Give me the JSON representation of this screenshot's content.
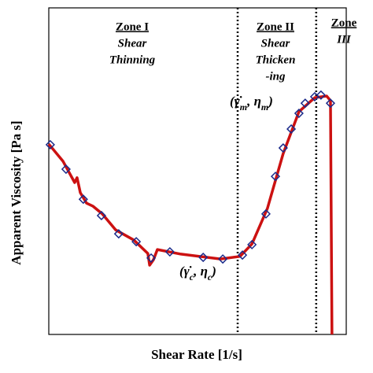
{
  "chart_data": {
    "type": "scatter",
    "x_label": "Shear Rate [1/s]",
    "y_label": "Apparent Viscosity [Pa s]",
    "xlim": [
      0,
      100
    ],
    "ylim": [
      0,
      100
    ],
    "zone_boundaries": [
      63.5,
      89.9
    ],
    "zones": [
      {
        "lines": [
          "Zone I",
          "Shear",
          "Thinning"
        ]
      },
      {
        "lines": [
          "Zone II",
          "Shear",
          "Thicken",
          "-ing"
        ]
      },
      {
        "lines": [
          "Zone",
          "III"
        ]
      }
    ],
    "annotations": [
      {
        "parts": [
          "(γ̇",
          "m",
          ", η",
          "m",
          ")"
        ]
      },
      {
        "parts": [
          "(γ̇",
          "c",
          ", η",
          "c",
          ")"
        ]
      }
    ],
    "series": [
      {
        "kind": "line",
        "color": "#cc1111",
        "x": [
          0,
          4.8,
          8.7,
          9.5,
          10.6,
          12.7,
          14.8,
          18.0,
          22.5,
          28.6,
          33.3,
          33.9,
          35.2,
          36.5,
          44.4,
          57.7,
          64.3,
          68.3,
          73.5,
          78.8,
          84.1,
          89.4,
          93.4,
          94.7,
          95.2
        ],
        "values": [
          58.3,
          53.0,
          46.5,
          48.0,
          43.4,
          40.2,
          39.3,
          36.9,
          32.0,
          28.9,
          24.8,
          21.2,
          22.9,
          26.0,
          24.6,
          23.1,
          23.9,
          27.7,
          38.6,
          55.4,
          68.2,
          72.5,
          73.0,
          71.6,
          0
        ]
      },
      {
        "kind": "marker",
        "color": "#1a2a8a",
        "x": [
          0.5,
          5.8,
          11.6,
          17.7,
          23.5,
          29.4,
          34.4,
          40.7,
          51.9,
          58.5,
          65.1,
          68.3,
          73.0,
          76.2,
          78.8,
          81.5,
          84.1,
          86.2,
          89.4,
          91.5,
          94.7
        ],
        "values": [
          58.1,
          50.6,
          41.4,
          36.4,
          30.8,
          28.4,
          23.4,
          25.3,
          23.6,
          23.1,
          24.3,
          27.5,
          36.9,
          48.4,
          57.1,
          62.9,
          67.7,
          70.8,
          72.8,
          73.3,
          70.8
        ]
      }
    ]
  }
}
